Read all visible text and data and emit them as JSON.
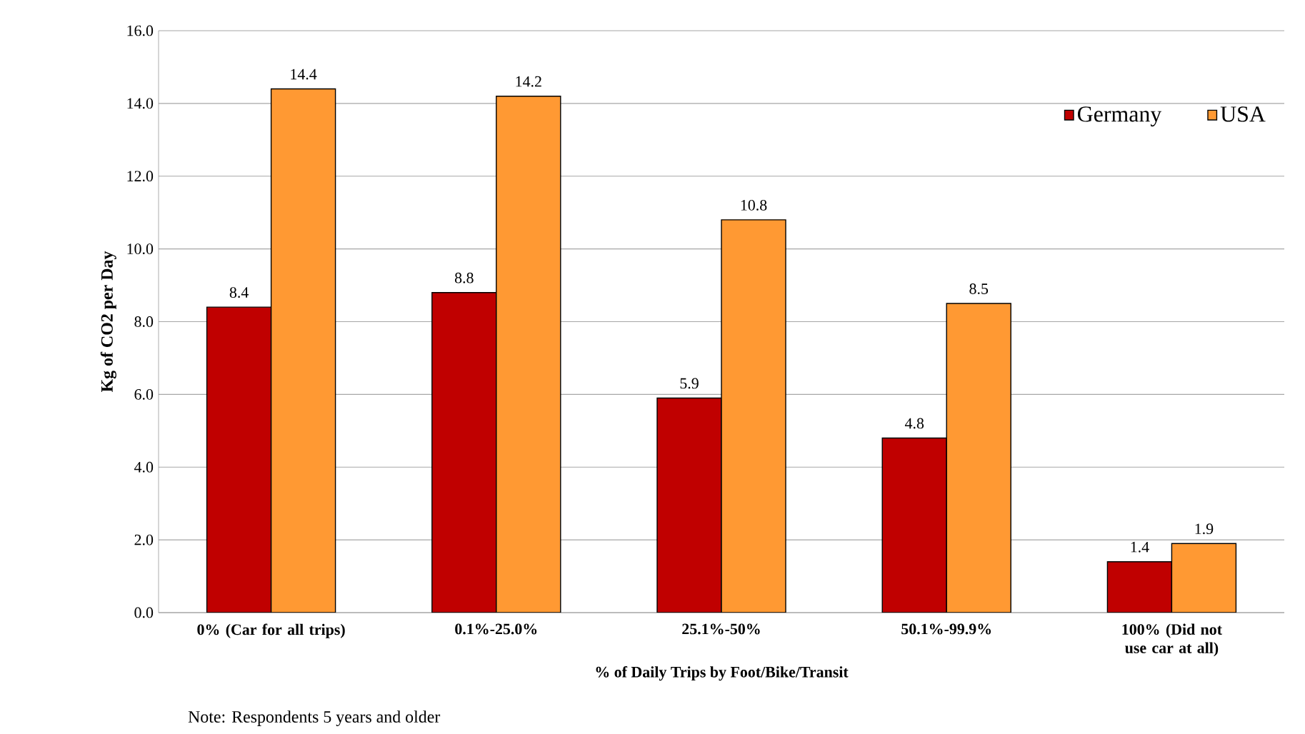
{
  "chart_data": {
    "type": "bar",
    "xlabel": "% of Daily Trips by Foot/Bike/Transit",
    "ylabel": "Kg of CO2 per Day",
    "categories": [
      "0% (Car for all trips)",
      "0.1%-25.0%",
      "25.1%-50%",
      "50.1%-99.9%",
      "100% (Did not use car at all)"
    ],
    "series": [
      {
        "name": "Germany",
        "color": "#c00000",
        "values": [
          8.4,
          8.8,
          5.9,
          4.8,
          1.4
        ]
      },
      {
        "name": "USA",
        "color": "#ff9933",
        "values": [
          14.4,
          14.2,
          10.8,
          8.5,
          1.9
        ]
      }
    ],
    "ylim": [
      0,
      16
    ],
    "yticks": [
      {
        "value": 0,
        "label": "0.0"
      },
      {
        "value": 2,
        "label": "2.0"
      },
      {
        "value": 4,
        "label": "4.0"
      },
      {
        "value": 6,
        "label": "6.0"
      },
      {
        "value": 8,
        "label": "8.0"
      },
      {
        "value": 10,
        "label": "10.0"
      },
      {
        "value": 12,
        "label": "12.0"
      },
      {
        "value": 14,
        "label": "14.0"
      },
      {
        "value": 16,
        "label": "16.0"
      }
    ],
    "grid": "y",
    "legend": "top right",
    "data_labels": true,
    "annotations": [
      "Note: Respondents 5 years and older"
    ]
  }
}
